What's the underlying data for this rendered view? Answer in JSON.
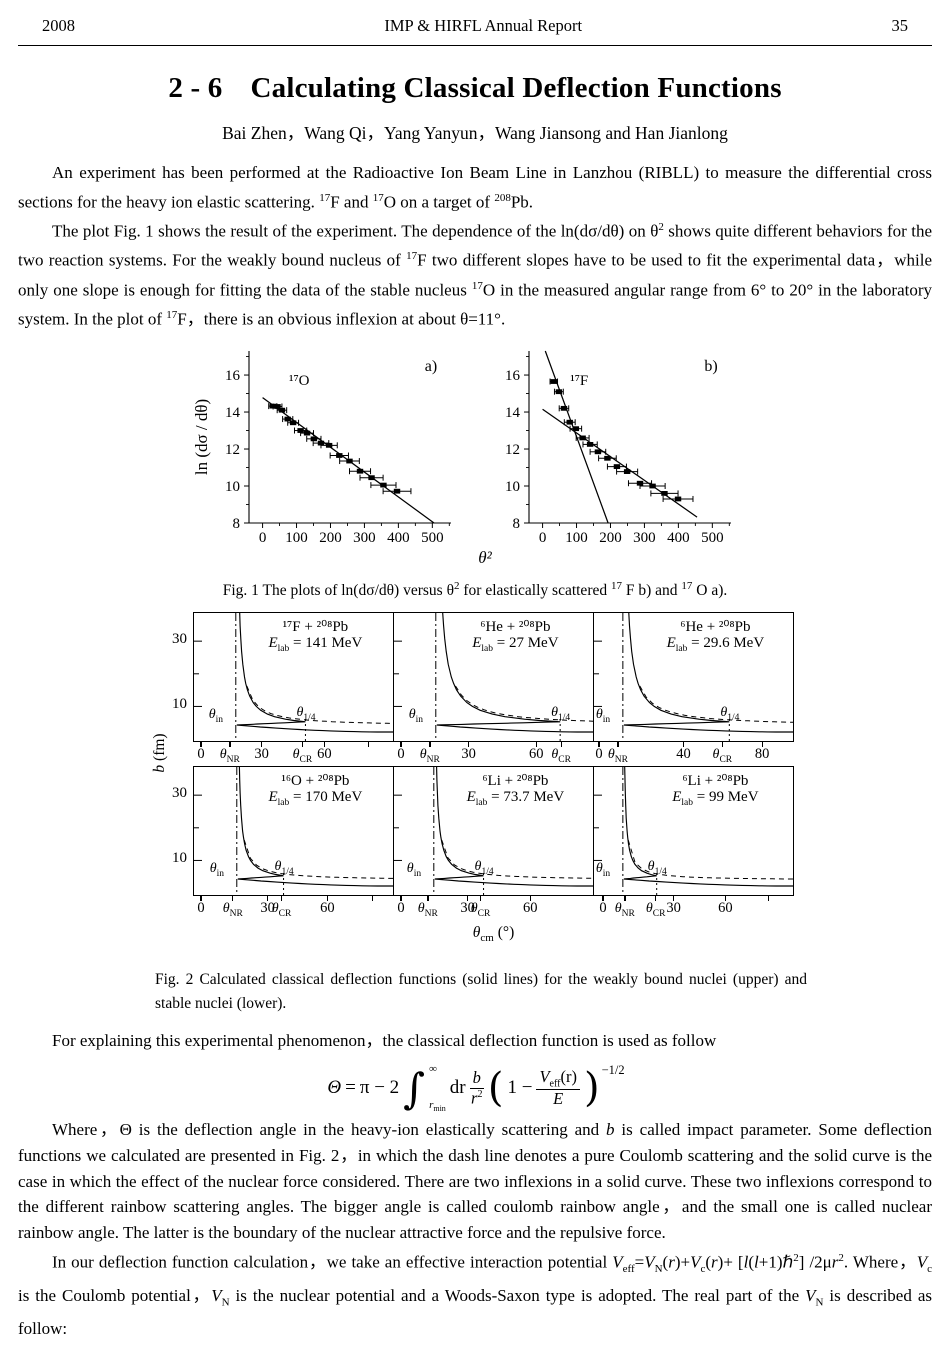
{
  "header": {
    "year": "2008",
    "journal": "IMP & HIRFL Annual Report",
    "page_number": "35"
  },
  "article": {
    "section_number": "2 - 6",
    "title": "Calculating Classical Deflection Functions",
    "authors": "Bai Zhen，Wang Qi，Yang Yanyun，Wang Jiansong and Han Jianlong",
    "paragraphs": {
      "p1": [
        "An experiment has been performed at the Radioactive Ion Beam Line in Lanzhou (RIBLL) to measure the differential cross sections for the heavy ion elastic scattering. ",
        {
          "t": "sup",
          "v": "17"
        },
        "F and ",
        {
          "t": "sup",
          "v": "17"
        },
        "O on a target of ",
        {
          "t": "sup",
          "v": "208"
        },
        "Pb."
      ],
      "p2": [
        "The plot Fig. 1 shows the result of the experiment. The dependence of the ln(dσ/dθ) on θ",
        {
          "t": "sup",
          "v": "2"
        },
        " shows quite different behaviors for the two reaction systems. For the weakly bound nucleus of ",
        {
          "t": "sup",
          "v": "17"
        },
        "F two different slopes have to be used to fit the experimental data，while only one slope is enough for fitting the data of the stable nucleus ",
        {
          "t": "sup",
          "v": "17"
        },
        "O in the measured angular range from 6° to 20° in the laboratory system. In the plot of ",
        {
          "t": "sup",
          "v": "17"
        },
        "F，there is an obvious inflexion at about θ=11°."
      ],
      "p3": [
        "For explaining this experimental phenomenon，the classical deflection function is used as follow"
      ],
      "p4": [
        "Where，Θ is the deflection angle in the heavy-ion elastically scattering and ",
        {
          "t": "i",
          "v": "b"
        },
        " is called impact parameter. Some deflection functions we calculated are presented in Fig. 2，in which the dash line denotes a pure Coulomb scattering and the solid curve is the case in which the effect of the nuclear force considered. There are two inflexions in a solid curve. These two inflexions correspond to the different rainbow scattering angles. The bigger angle is called coulomb rainbow angle，and the small one is called nuclear rainbow angle. The latter is the boundary of the nuclear attractive force and the repulsive force."
      ],
      "p5": [
        "In our deflection function calculation，we take an effective interaction potential ",
        {
          "t": "i",
          "v": "V"
        },
        {
          "t": "sub",
          "v": "eff"
        },
        "=",
        {
          "t": "i",
          "v": "V"
        },
        {
          "t": "sub",
          "v": "N"
        },
        "(",
        {
          "t": "i",
          "v": "r"
        },
        ")+",
        {
          "t": "i",
          "v": "V"
        },
        {
          "t": "sub",
          "v": "c"
        },
        "(",
        {
          "t": "i",
          "v": "r"
        },
        ")+ [",
        {
          "t": "i",
          "v": "l"
        },
        "(",
        {
          "t": "i",
          "v": "l"
        },
        "+1)ℏ",
        {
          "t": "sup",
          "v": "2"
        },
        "] /2μ",
        {
          "t": "i",
          "v": "r"
        },
        {
          "t": "sup",
          "v": "2"
        },
        ". Where，",
        {
          "t": "i",
          "v": "V"
        },
        {
          "t": "sub",
          "v": "c"
        },
        " is the Coulomb potential，",
        {
          "t": "i",
          "v": "V"
        },
        {
          "t": "sub",
          "v": "N"
        },
        " is the nuclear potential and a Woods-Saxon type is adopted. The real part of the ",
        {
          "t": "i",
          "v": "V"
        },
        {
          "t": "sub",
          "v": "N"
        },
        " is described as follow:"
      ]
    }
  },
  "figures": {
    "fig1": {
      "caption": [
        "Fig. 1  The plots of ln(dσ/dθ) versus θ",
        {
          "t": "sup",
          "v": "2"
        },
        " for elastically scattered ",
        {
          "t": "sup",
          "v": "17"
        },
        " F b) and ",
        {
          "t": "sup",
          "v": "17"
        },
        " O a)."
      ]
    },
    "fig2": {
      "caption": [
        "Fig. 2 Calculated classical deflection functions (solid lines) for the weakly bound nuclei (upper) and stable nuclei (lower)."
      ]
    }
  },
  "formula": {
    "lhs": "Θ",
    "rel": "=",
    "pre": "π − 2",
    "integral": "∫",
    "upper": "∞",
    "lower_base": "r",
    "lower_sub": "min",
    "differential": "dr",
    "frac1": {
      "num": "b",
      "den_base": "r",
      "den_sup": "2"
    },
    "paren_open": "(",
    "inner_pre": "1 −",
    "frac2": {
      "num_base": "V",
      "num_sub": "eff",
      "num_post": "(r)",
      "den": "E"
    },
    "paren_close": ")",
    "exponent": "−1/2"
  },
  "chart_data": [
    {
      "id": "fig1a",
      "type": "scatter",
      "panel_label": "a)",
      "series_label": "¹⁷O",
      "xlabel": "θ²",
      "ylabel": "ln (dσ / dθ)",
      "xlim": [
        -40,
        555
      ],
      "ylim": [
        8,
        17.3
      ],
      "xticks": [
        0,
        100,
        200,
        300,
        400,
        500
      ],
      "yticks": [
        8,
        10,
        12,
        14,
        16
      ],
      "lines": [
        [
          [
            0,
            14.78
          ],
          [
            505,
            8.0
          ]
        ]
      ],
      "points": [
        [
          30,
          14.32,
          12
        ],
        [
          44,
          14.3,
          13
        ],
        [
          57,
          14.1,
          14
        ],
        [
          74,
          13.62,
          15
        ],
        [
          90,
          13.42,
          16
        ],
        [
          112,
          13.0,
          18
        ],
        [
          131,
          12.86,
          19
        ],
        [
          151,
          12.55,
          21
        ],
        [
          172,
          12.32,
          23
        ],
        [
          196,
          12.2,
          24
        ],
        [
          226,
          11.65,
          27
        ],
        [
          256,
          11.35,
          29
        ],
        [
          287,
          10.8,
          31
        ],
        [
          321,
          10.45,
          34
        ],
        [
          356,
          10.05,
          37
        ],
        [
          396,
          9.72,
          41
        ]
      ]
    },
    {
      "id": "fig1b",
      "type": "scatter",
      "panel_label": "b)",
      "series_label": "¹⁷F",
      "xlabel": "θ²",
      "ylabel": "ln (dσ / dθ)",
      "xlim": [
        -40,
        555
      ],
      "ylim": [
        8,
        17.3
      ],
      "xticks": [
        0,
        100,
        200,
        300,
        400,
        500
      ],
      "yticks": [
        8,
        10,
        12,
        14,
        16
      ],
      "lines": [
        [
          [
            8,
            17.3
          ],
          [
            193,
            8.0
          ]
        ],
        [
          [
            0,
            14.15
          ],
          [
            455,
            8.32
          ]
        ]
      ],
      "points": [
        [
          33,
          15.65,
          11
        ],
        [
          48,
          15.1,
          13
        ],
        [
          63,
          14.2,
          14
        ],
        [
          80,
          13.45,
          16
        ],
        [
          98,
          13.1,
          17
        ],
        [
          118,
          12.6,
          19
        ],
        [
          140,
          12.25,
          21
        ],
        [
          163,
          11.85,
          23
        ],
        [
          191,
          11.5,
          26
        ],
        [
          219,
          11.05,
          28
        ],
        [
          249,
          10.78,
          31
        ],
        [
          287,
          10.15,
          34
        ],
        [
          324,
          10.0,
          37
        ],
        [
          359,
          9.6,
          40
        ],
        [
          399,
          9.3,
          44
        ]
      ]
    },
    {
      "id": "fig2",
      "type": "deflection-function-panels",
      "xlabel_segments": [
        {
          "t": "i",
          "v": "θ"
        },
        {
          "t": "sub",
          "v": "cm"
        },
        " (°)"
      ],
      "ylabel_segments": [
        {
          "t": "i",
          "v": "b"
        },
        " (fm)"
      ],
      "yticks": [
        {
          "label": "30",
          "pos": 0.78
        },
        {
          "label": "10",
          "pos": 0.27
        }
      ],
      "theta_in": [
        {
          "t": "i",
          "v": "θ"
        },
        {
          "t": "sub",
          "v": "in"
        }
      ],
      "theta_quarter": [
        {
          "t": "i",
          "v": "θ"
        },
        {
          "t": "sub",
          "v": "1/4"
        }
      ],
      "panels": [
        {
          "reaction": "¹⁷F + ²⁰⁸Pb",
          "elab": [
            {
              "t": "i",
              "v": "E"
            },
            {
              "t": "sub",
              "v": "lab"
            },
            " = 141 MeV"
          ],
          "xnr": 0.21,
          "xcr": 0.56,
          "xticks": [
            {
              "pos": 0.04,
              "label": "0"
            },
            {
              "pos": 0.185,
              "theta": "NR"
            },
            {
              "pos": 0.345,
              "label": "30"
            },
            {
              "pos": 0.55,
              "theta": "CR"
            },
            {
              "pos": 0.66,
              "label": "60"
            },
            {
              "pos": 0.88
            }
          ]
        },
        {
          "reaction": "⁶He + ²⁰⁸Pb",
          "elab": [
            {
              "t": "i",
              "v": "E"
            },
            {
              "t": "sub",
              "v": "lab"
            },
            " = 27 MeV"
          ],
          "xnr": 0.21,
          "xcr": 0.835,
          "xticks": [
            {
              "pos": 0.04,
              "label": "0"
            },
            {
              "pos": 0.185,
              "theta": "NR"
            },
            {
              "pos": 0.38,
              "label": "30"
            },
            {
              "pos": 0.72,
              "label": "60"
            },
            {
              "pos": 0.845,
              "theta": "CR"
            }
          ]
        },
        {
          "reaction": "⁶He + ²⁰⁸Pb",
          "elab": [
            {
              "t": "i",
              "v": "E"
            },
            {
              "t": "sub",
              "v": "lab"
            },
            " = 29.6 MeV"
          ],
          "xnr": 0.145,
          "xcr": 0.68,
          "xticks": [
            {
              "pos": 0.03,
              "label": "0"
            },
            {
              "pos": 0.125,
              "theta": "NR"
            },
            {
              "pos": 0.455,
              "label": "40"
            },
            {
              "pos": 0.65,
              "theta": "CR"
            },
            {
              "pos": 0.85,
              "label": "80"
            }
          ]
        },
        {
          "reaction": "¹⁶O + ²⁰⁸Pb",
          "elab": [
            {
              "t": "i",
              "v": "E"
            },
            {
              "t": "sub",
              "v": "lab"
            },
            " = 170 MeV"
          ],
          "xnr": 0.215,
          "xcr": 0.45,
          "xticks": [
            {
              "pos": 0.04,
              "label": "0"
            },
            {
              "pos": 0.2,
              "theta": "NR"
            },
            {
              "pos": 0.375,
              "label": "30"
            },
            {
              "pos": 0.445,
              "theta": "CR"
            },
            {
              "pos": 0.675,
              "label": "60"
            },
            {
              "pos": 0.9
            }
          ]
        },
        {
          "reaction": "⁶Li + ²⁰⁸Pb",
          "elab": [
            {
              "t": "i",
              "v": "E"
            },
            {
              "t": "sub",
              "v": "lab"
            },
            " = 73.7 MeV"
          ],
          "xnr": 0.2,
          "xcr": 0.45,
          "xticks": [
            {
              "pos": 0.04,
              "label": "0"
            },
            {
              "pos": 0.175,
              "theta": "NR"
            },
            {
              "pos": 0.375,
              "label": "30"
            },
            {
              "pos": 0.44,
              "theta": "CR"
            },
            {
              "pos": 0.69,
              "label": "60"
            }
          ]
        },
        {
          "reaction": "⁶Li + ²⁰⁸Pb",
          "elab": [
            {
              "t": "i",
              "v": "E"
            },
            {
              "t": "sub",
              "v": "lab"
            },
            " = 99 MeV"
          ],
          "xnr": 0.145,
          "xcr": 0.315,
          "xticks": [
            {
              "pos": 0.05,
              "label": "0"
            },
            {
              "pos": 0.16,
              "theta": "NR"
            },
            {
              "pos": 0.315,
              "theta": "CR"
            },
            {
              "pos": 0.405,
              "label": "30"
            },
            {
              "pos": 0.665,
              "label": "60"
            },
            {
              "pos": 0.88
            }
          ]
        }
      ]
    }
  ]
}
